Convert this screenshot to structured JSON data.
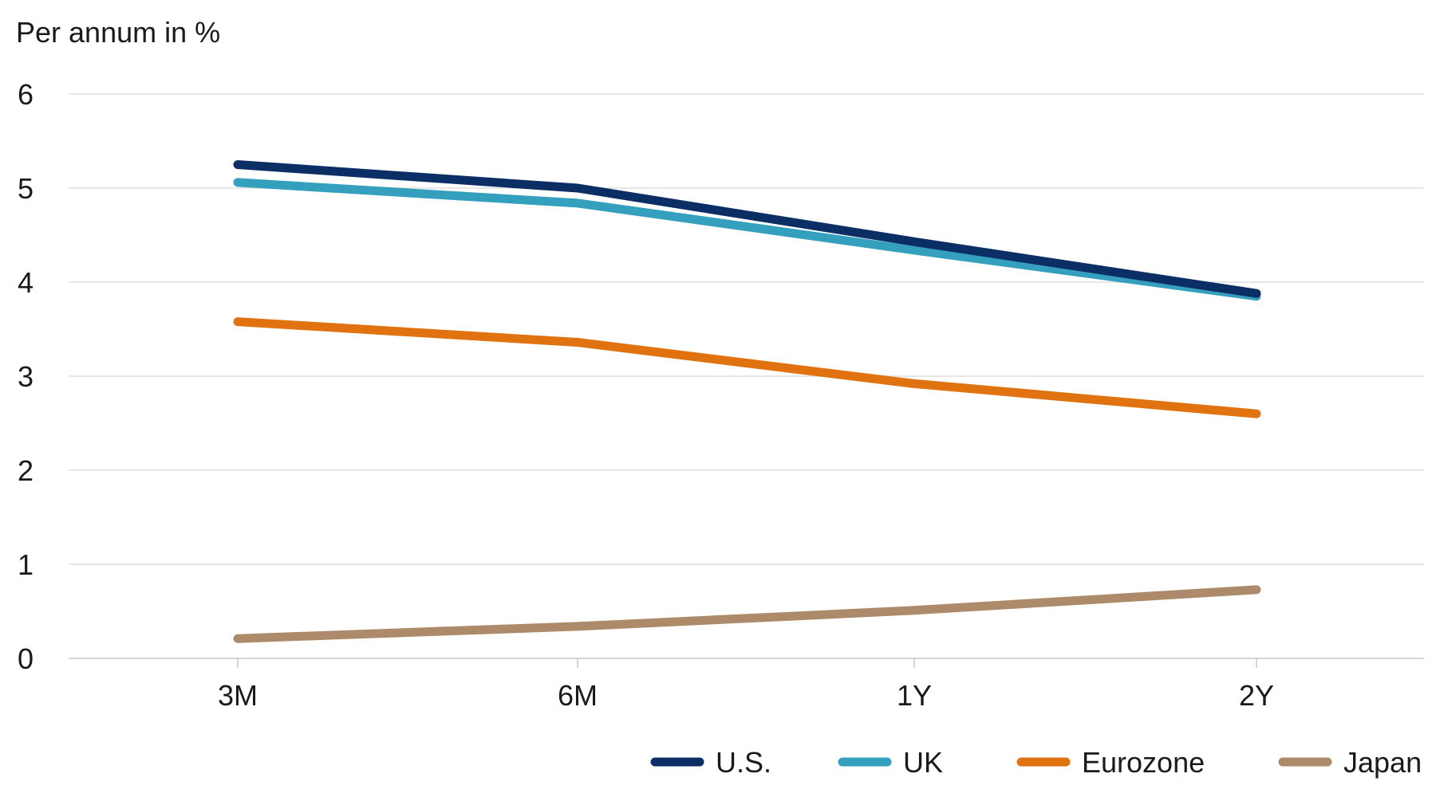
{
  "chart_data": {
    "type": "line",
    "ylabel": "Per annum in %",
    "categories": [
      "3M",
      "6M",
      "1Y",
      "2Y"
    ],
    "ylim": [
      0,
      6
    ],
    "yticks": [
      "0",
      "1",
      "2",
      "3",
      "4",
      "5",
      "6"
    ],
    "grid": true,
    "legend_placement": "bottom-right",
    "series": [
      {
        "name": "U.S.",
        "color": "#0b2e64",
        "values": [
          5.25,
          5.0,
          4.43,
          3.88
        ]
      },
      {
        "name": "UK",
        "color": "#35a0bd",
        "values": [
          5.06,
          4.84,
          4.34,
          3.85
        ]
      },
      {
        "name": "Eurozone",
        "color": "#e0720f",
        "values": [
          3.58,
          3.36,
          2.92,
          2.6
        ]
      },
      {
        "name": "Japan",
        "color": "#ad8a69",
        "values": [
          0.21,
          0.34,
          0.51,
          0.73
        ]
      }
    ]
  }
}
